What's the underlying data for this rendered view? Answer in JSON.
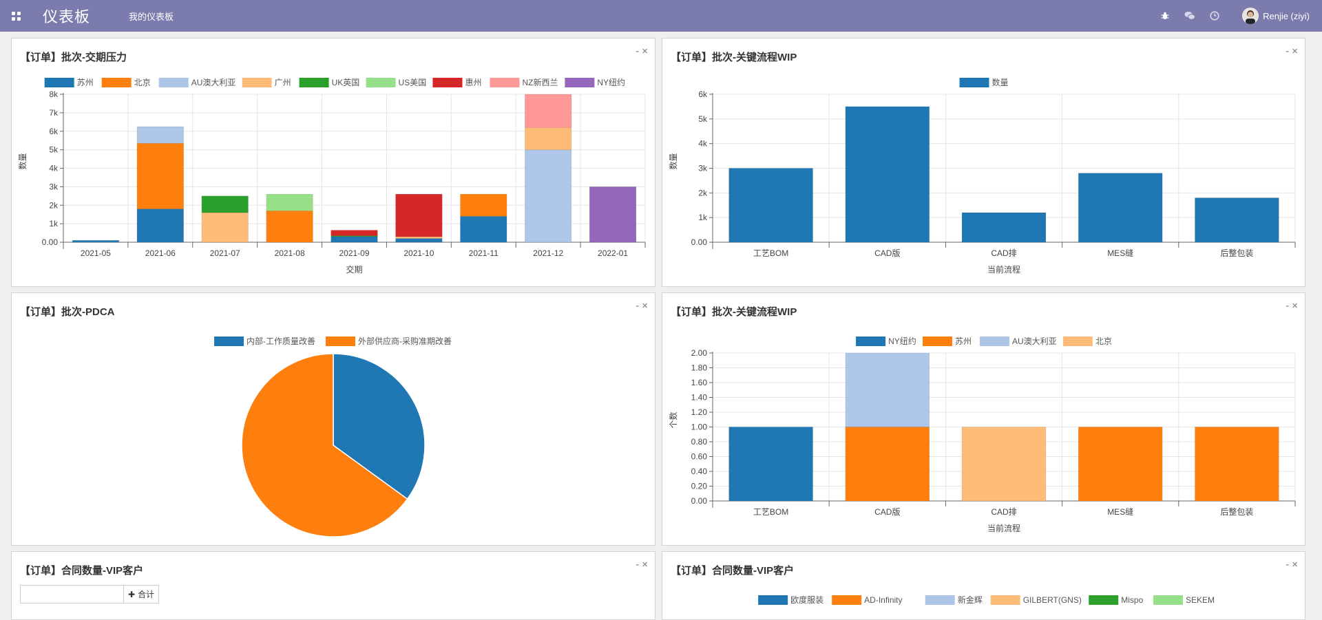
{
  "topbar": {
    "brand": "仪表板",
    "menu": "我的仪表板",
    "user": "Renjie (ziyi)",
    "icons": [
      "bug-icon",
      "chat-icon",
      "clock-icon"
    ],
    "bg": "#7c7bad"
  },
  "panels": [
    {
      "title": "【订单】批次-交期压力",
      "tools": [
        "-",
        "×"
      ]
    },
    {
      "title": "【订单】批次-关键流程WIP",
      "tools": [
        "-",
        "×"
      ]
    },
    {
      "title": "【订单】批次-PDCA",
      "tools": [
        "-",
        "×"
      ]
    },
    {
      "title": "【订单】批次-关键流程WIP",
      "tools": [
        "-",
        "×"
      ]
    },
    {
      "title": "【订单】合同数量-VIP客户",
      "tools": [
        "-",
        "×"
      ]
    },
    {
      "title": "【订单】合同数量-VIP客户",
      "tools": [
        "-",
        "×"
      ]
    }
  ],
  "pivot": {
    "total_label": "合计"
  },
  "chart_data": [
    {
      "type": "bar",
      "stacked": true,
      "xlabel": "交期",
      "ylabel": "数量",
      "ylim": [
        0,
        8000
      ],
      "yticks": [
        "0.00",
        "1k",
        "2k",
        "3k",
        "4k",
        "5k",
        "6k",
        "7k",
        "8k"
      ],
      "categories": [
        "2021-05",
        "2021-06",
        "2021-07",
        "2021-08",
        "2021-09",
        "2021-10",
        "2021-11",
        "2021-12",
        "2022-01"
      ],
      "series": [
        {
          "name": "苏州",
          "color": "#1f77b4",
          "values": [
            100,
            1800,
            0,
            0,
            300,
            200,
            1400,
            0,
            0
          ]
        },
        {
          "name": "北京",
          "color": "#ff7f0e",
          "values": [
            0,
            3550,
            0,
            1700,
            0,
            0,
            1200,
            0,
            0
          ]
        },
        {
          "name": "AU澳大利亚",
          "color": "#aec7e8",
          "values": [
            0,
            900,
            0,
            0,
            0,
            0,
            0,
            5000,
            0
          ]
        },
        {
          "name": "广州",
          "color": "#ffbb78",
          "values": [
            0,
            0,
            1600,
            0,
            0,
            100,
            0,
            1200,
            0
          ]
        },
        {
          "name": "UK英国",
          "color": "#2ca02c",
          "values": [
            0,
            0,
            900,
            0,
            50,
            0,
            0,
            0,
            0
          ]
        },
        {
          "name": "US美国",
          "color": "#98df8a",
          "values": [
            0,
            0,
            0,
            900,
            0,
            0,
            0,
            0,
            0
          ]
        },
        {
          "name": "惠州",
          "color": "#d62728",
          "values": [
            0,
            0,
            0,
            0,
            300,
            2300,
            0,
            0,
            0
          ]
        },
        {
          "name": "NZ新西兰",
          "color": "#ff9896",
          "values": [
            0,
            0,
            0,
            0,
            0,
            0,
            0,
            1800,
            0
          ]
        },
        {
          "name": "NY纽约",
          "color": "#9467bd",
          "values": [
            0,
            0,
            0,
            0,
            0,
            0,
            0,
            0,
            3000
          ]
        }
      ],
      "legend": "top"
    },
    {
      "type": "bar",
      "stacked": false,
      "xlabel": "当前流程",
      "ylabel": "数量",
      "ylim": [
        0,
        6000
      ],
      "yticks": [
        "0.00",
        "1k",
        "2k",
        "3k",
        "4k",
        "5k",
        "6k"
      ],
      "categories": [
        "工艺BOM",
        "CAD版",
        "CAD排",
        "MES缝",
        "后整包装"
      ],
      "series": [
        {
          "name": "数量",
          "color": "#1f77b4",
          "values": [
            3000,
            5500,
            1200,
            2800,
            1800
          ]
        }
      ],
      "legend": "top"
    },
    {
      "type": "pie",
      "series": [
        {
          "name": "内部-工作质量改善",
          "color": "#1f77b4",
          "value": 35
        },
        {
          "name": "外部供应商-采购准期改善",
          "color": "#ff7f0e",
          "value": 65
        }
      ],
      "legend": "top"
    },
    {
      "type": "bar",
      "stacked": true,
      "xlabel": "当前流程",
      "ylabel": "个数",
      "ylim": [
        0,
        2
      ],
      "yticks": [
        "0.00",
        "0.20",
        "0.40",
        "0.60",
        "0.80",
        "1.00",
        "1.20",
        "1.40",
        "1.60",
        "1.80",
        "2.00"
      ],
      "categories": [
        "工艺BOM",
        "CAD版",
        "CAD排",
        "MES缝",
        "后整包装"
      ],
      "series": [
        {
          "name": "NY纽约",
          "color": "#1f77b4",
          "values": [
            1,
            0,
            0,
            0,
            0
          ]
        },
        {
          "name": "苏州",
          "color": "#ff7f0e",
          "values": [
            0,
            1,
            0,
            1,
            1
          ]
        },
        {
          "name": "AU澳大利亚",
          "color": "#aec7e8",
          "values": [
            0,
            1,
            0,
            0,
            0
          ]
        },
        {
          "name": "北京",
          "color": "#ffbb78",
          "values": [
            0,
            0,
            1,
            0,
            0
          ]
        }
      ],
      "legend": "top"
    },
    {
      "type": "bar",
      "legend_only": true,
      "series": [
        {
          "name": "欧度服装",
          "color": "#1f77b4"
        },
        {
          "name": "AD-Infinity",
          "color": "#ff7f0e"
        },
        {
          "name": "新金辉",
          "color": "#aec7e8"
        },
        {
          "name": "GILBERT(GNS)",
          "color": "#ffbb78"
        },
        {
          "name": "Mispo",
          "color": "#2ca02c"
        },
        {
          "name": "SEKEM",
          "color": "#98df8a"
        }
      ],
      "legend": "top"
    }
  ]
}
